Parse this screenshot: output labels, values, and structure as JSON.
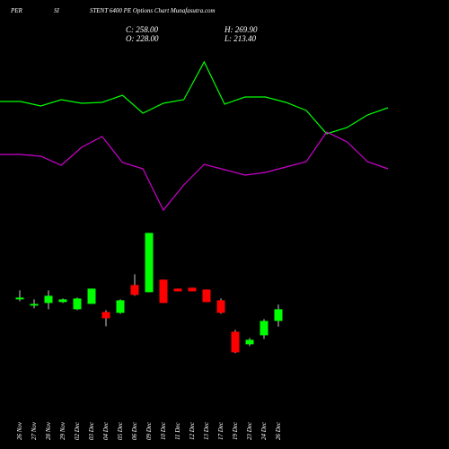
{
  "chart_data": [
    {
      "type": "candlestick",
      "title_parts": [
        "PER",
        "SI",
        "STENT 6400 PE Options Chart Munafasutra.com"
      ],
      "ohlc_labels": [
        "C: 258.00",
        "H: 269.90",
        "O: 228.00",
        "L: 213.40"
      ],
      "categories": [
        "26 Nov",
        "27 Nov",
        "28 Nov",
        "29 Nov",
        "02 Dec",
        "03 Dec",
        "04 Dec",
        "05 Dec",
        "06 Dec",
        "09 Dec",
        "10 Dec",
        "11 Dec",
        "12 Dec",
        "13 Dec",
        "17 Dec",
        "19 Dec",
        "23 Dec",
        "24 Dec",
        "26 Dec"
      ],
      "open": [
        283.2,
        267.1,
        274,
        276.3,
        257.9,
        271.7,
        251,
        248.7,
        320,
        301.6,
        333.8,
        310.8,
        313.1,
        308.5,
        280.9,
        200.4,
        168.2,
        191.2,
        228
      ],
      "high": [
        306.2,
        283.2,
        306.2,
        285.5,
        287.8,
        310.8,
        255.6,
        283.2,
        347.6,
        453.4,
        333.8,
        310.8,
        313.1,
        308.5,
        285.5,
        205,
        184.3,
        232.6,
        269.9
      ],
      "low": [
        278.6,
        260.2,
        257.9,
        274,
        255.6,
        271.7,
        214.2,
        246.4,
        292.4,
        301.6,
        274,
        303.9,
        303.9,
        276.3,
        246.4,
        145.2,
        163.6,
        182,
        213.4
      ],
      "close": [
        287.8,
        271.7,
        292.4,
        283.2,
        285.5,
        310.8,
        234.9,
        280.9,
        294.7,
        453.4,
        274,
        303.9,
        303.9,
        276.3,
        248.7,
        147.5,
        179.7,
        228,
        258
      ],
      "up_color": "#00ff00",
      "down_color": "#ff0000",
      "ylim": [
        -100,
        1050
      ]
    },
    {
      "type": "line",
      "series": [
        {
          "color": "#00ff00",
          "values": [
            387,
            387,
            382,
            389,
            385,
            386,
            394,
            374,
            385,
            389,
            431,
            384,
            392,
            392,
            386,
            377,
            351,
            358,
            372,
            380
          ]
        },
        {
          "color": "#cc00cc",
          "values": [
            328,
            328,
            326,
            316,
            336,
            348,
            319,
            312,
            266,
            294,
            317,
            311,
            305,
            308,
            314,
            320,
            353,
            342,
            320,
            312
          ]
        }
      ],
      "ylim": [
        0,
        500
      ]
    }
  ]
}
